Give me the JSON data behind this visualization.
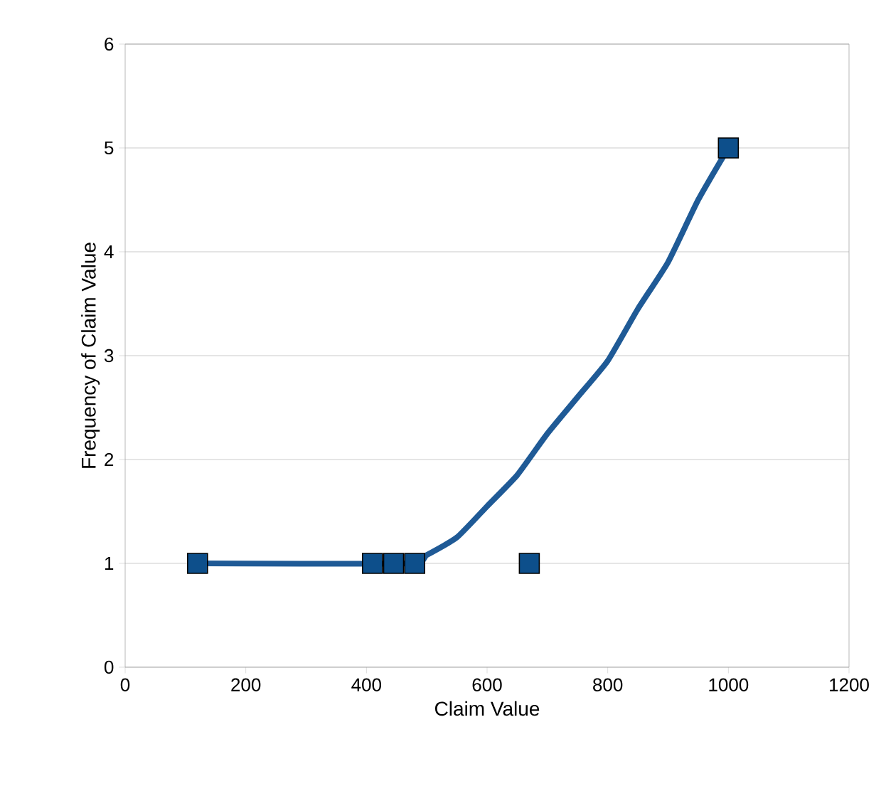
{
  "chart_data": {
    "type": "scatter",
    "xlabel": "Claim Value",
    "ylabel": "Frequency of Claim Value",
    "xlim": [
      0,
      1200
    ],
    "ylim": [
      0,
      6
    ],
    "xticks": [
      0,
      200,
      400,
      600,
      800,
      1000,
      1200
    ],
    "yticks": [
      0,
      1,
      2,
      3,
      4,
      5,
      6
    ],
    "grid": "y",
    "series": [
      {
        "type": "line",
        "marker": "none",
        "color": "#1f5a96",
        "x": [
          120,
          470,
          500,
          550,
          600,
          650,
          700,
          750,
          800,
          850,
          900,
          950,
          1000
        ],
        "values": [
          1,
          1,
          1.08,
          1.25,
          1.55,
          1.85,
          2.25,
          2.6,
          2.95,
          3.45,
          3.9,
          4.5,
          5
        ]
      },
      {
        "marker": "square",
        "color": "#0d4f8b",
        "x": [
          120,
          410,
          445,
          480,
          670,
          1000
        ],
        "values": [
          1,
          1,
          1,
          1,
          1,
          5
        ]
      }
    ]
  }
}
